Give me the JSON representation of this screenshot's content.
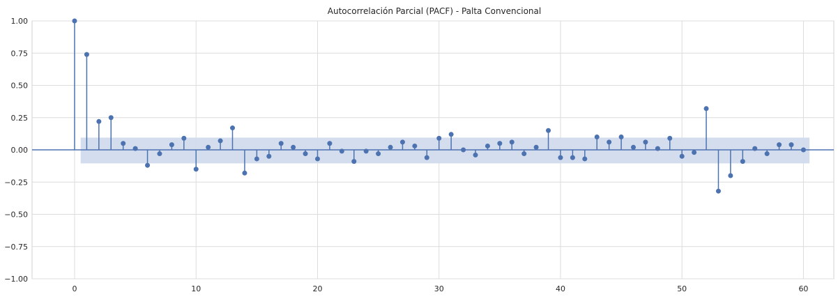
{
  "chart_data": {
    "type": "stem",
    "title": "Autocorrelación Parcial (PACF) - Palta Convencional",
    "xlabel": "",
    "ylabel": "",
    "xlim": [
      -3.5,
      62.5
    ],
    "ylim": [
      -1.0,
      1.0
    ],
    "xticks": [
      "0",
      "10",
      "20",
      "30",
      "40",
      "50",
      "60"
    ],
    "yticks": [
      "1.00",
      "0.75",
      "0.50",
      "0.25",
      "0.00",
      "−0.25",
      "−0.50",
      "−0.75",
      "−1.00"
    ],
    "grid": true,
    "confidence_band": {
      "lag_start": 0.5,
      "lag_end": 60.5,
      "lower": -0.105,
      "upper": 0.095
    },
    "lags": [
      0,
      1,
      2,
      3,
      4,
      5,
      6,
      7,
      8,
      9,
      10,
      11,
      12,
      13,
      14,
      15,
      16,
      17,
      18,
      19,
      20,
      21,
      22,
      23,
      24,
      25,
      26,
      27,
      28,
      29,
      30,
      31,
      32,
      33,
      34,
      35,
      36,
      37,
      38,
      39,
      40,
      41,
      42,
      43,
      44,
      45,
      46,
      47,
      48,
      49,
      50,
      51,
      52,
      53,
      54,
      55,
      56,
      57,
      58,
      59,
      60
    ],
    "values": [
      1.0,
      0.74,
      0.22,
      0.25,
      0.05,
      0.01,
      -0.12,
      -0.03,
      0.04,
      0.09,
      -0.15,
      0.02,
      0.07,
      0.17,
      -0.18,
      -0.07,
      -0.05,
      0.05,
      0.02,
      -0.03,
      -0.07,
      0.05,
      -0.01,
      -0.09,
      -0.01,
      -0.03,
      0.02,
      0.06,
      0.03,
      -0.06,
      0.09,
      0.12,
      0.0,
      -0.04,
      0.03,
      0.05,
      0.06,
      -0.03,
      0.02,
      0.15,
      -0.06,
      -0.06,
      -0.07,
      0.1,
      0.06,
      0.1,
      0.02,
      0.06,
      0.01,
      0.09,
      -0.05,
      -0.02,
      0.32,
      -0.32,
      -0.2,
      -0.09,
      0.01,
      -0.03,
      0.04,
      0.04,
      0.0
    ],
    "colors": {
      "marker": "#4c72b0",
      "band": "#d2dbec",
      "grid": "#dcdcdc",
      "baseline": "#4c72b0"
    }
  }
}
